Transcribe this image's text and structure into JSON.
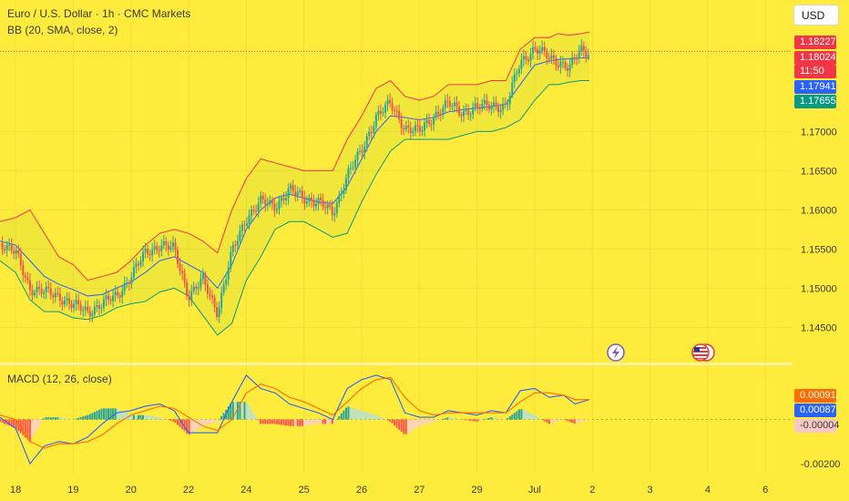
{
  "header": {
    "symbol_title": "Euro / U.S. Dollar · 1h · CMC Markets",
    "bb_indicator": "BB (20, SMA, close, 2)",
    "macd_indicator": "MACD (12, 26, close)",
    "currency_button": "USD"
  },
  "price_tags": {
    "upper_band": {
      "value": "1.18227",
      "color": "#f23645"
    },
    "last_price": {
      "value": "1.18024",
      "color": "#f23645"
    },
    "countdown": {
      "value": "11:50",
      "color": "#f23645"
    },
    "basis": {
      "value": "1.17941",
      "color": "#2962ff"
    },
    "lower_band": {
      "value": "1.17655",
      "color": "#089981"
    }
  },
  "macd_tags": {
    "signal": {
      "value": "0.00091",
      "color": "#ff6d00"
    },
    "macd": {
      "value": "0.00087",
      "color": "#2962ff"
    },
    "histogram": {
      "value": "-0.00004",
      "color": "#f7c6c6"
    }
  },
  "events": {
    "flash_icon": "lightning-icon",
    "us_flag_icon": "us-flag-icon"
  },
  "chart_data": [
    {
      "type": "line",
      "name_hint": "price",
      "y_ticks": [
        "1.17000",
        "1.16500",
        "1.16000",
        "1.15500",
        "1.15000",
        "1.14500"
      ],
      "y_tick_values": [
        1.17,
        1.165,
        1.16,
        1.155,
        1.15,
        1.145
      ],
      "ylim": [
        1.1405,
        1.1868
      ],
      "x_ticks": [
        "18",
        "19",
        "20",
        "22",
        "24",
        "25",
        "26",
        "27",
        "29",
        "Jul",
        "2",
        "3",
        "4",
        "6"
      ],
      "x_day_index": [
        0,
        1,
        2,
        3,
        4,
        5,
        6,
        7,
        8,
        9,
        10,
        11,
        12,
        13
      ],
      "xlim": [
        -0.27,
        13.47
      ],
      "series": [
        {
          "key": "close",
          "color": "#26a69a",
          "x": [
            -0.27,
            0,
            0.25,
            0.5,
            0.75,
            1,
            1.25,
            1.5,
            1.75,
            2,
            2.25,
            2.5,
            2.75,
            3,
            3.25,
            3.5,
            3.75,
            4,
            4.25,
            4.5,
            4.75,
            5,
            5.25,
            5.5,
            5.75,
            6,
            6.25,
            6.5,
            6.75,
            7,
            7.25,
            7.5,
            7.75,
            8,
            8.25,
            8.5,
            8.75,
            9,
            9.25,
            9.4,
            9.6,
            9.8,
            9.95
          ],
          "values": [
            1.1558,
            1.1545,
            1.15,
            1.1495,
            1.149,
            1.1478,
            1.147,
            1.148,
            1.149,
            1.1515,
            1.1545,
            1.1555,
            1.155,
            1.149,
            1.151,
            1.147,
            1.1545,
            1.159,
            1.161,
            1.1605,
            1.1625,
            1.1615,
            1.161,
            1.1595,
            1.1645,
            1.1675,
            1.172,
            1.1735,
            1.1705,
            1.17,
            1.172,
            1.1735,
            1.1725,
            1.173,
            1.1735,
            1.173,
            1.179,
            1.1805,
            1.1795,
            1.179,
            1.178,
            1.1805,
            1.1802
          ]
        },
        {
          "key": "bb_upper",
          "color": "#f23645",
          "x": [
            -0.27,
            0,
            0.25,
            0.5,
            0.75,
            1,
            1.25,
            1.5,
            1.75,
            2,
            2.25,
            2.5,
            2.75,
            3,
            3.25,
            3.5,
            3.75,
            4,
            4.25,
            4.5,
            4.75,
            5,
            5.25,
            5.5,
            5.75,
            6,
            6.25,
            6.5,
            6.75,
            7,
            7.25,
            7.5,
            7.75,
            8,
            8.25,
            8.5,
            8.75,
            9,
            9.25,
            9.4,
            9.6,
            9.8,
            9.95
          ],
          "values": [
            1.1585,
            1.159,
            1.16,
            1.157,
            1.154,
            1.153,
            1.151,
            1.1515,
            1.152,
            1.1535,
            1.1555,
            1.157,
            1.1575,
            1.157,
            1.156,
            1.1545,
            1.16,
            1.164,
            1.1665,
            1.166,
            1.1655,
            1.165,
            1.165,
            1.165,
            1.169,
            1.172,
            1.1755,
            1.1765,
            1.1745,
            1.174,
            1.1745,
            1.176,
            1.176,
            1.176,
            1.1765,
            1.1765,
            1.1805,
            1.182,
            1.182,
            1.1825,
            1.1823,
            1.1825,
            1.1827
          ]
        },
        {
          "key": "bb_basis",
          "color": "#2962ff",
          "x": [
            -0.27,
            0,
            0.25,
            0.5,
            0.75,
            1,
            1.25,
            1.5,
            1.75,
            2,
            2.25,
            2.5,
            2.75,
            3,
            3.25,
            3.5,
            3.75,
            4,
            4.25,
            4.5,
            4.75,
            5,
            5.25,
            5.5,
            5.75,
            6,
            6.25,
            6.5,
            6.75,
            7,
            7.25,
            7.5,
            7.75,
            8,
            8.25,
            8.5,
            8.75,
            9,
            9.25,
            9.4,
            9.6,
            9.8,
            9.95
          ],
          "values": [
            1.156,
            1.1555,
            1.1535,
            1.1515,
            1.1505,
            1.1498,
            1.149,
            1.1492,
            1.15,
            1.1508,
            1.152,
            1.1535,
            1.154,
            1.153,
            1.152,
            1.15,
            1.153,
            1.1575,
            1.16,
            1.1615,
            1.162,
            1.1615,
            1.161,
            1.1608,
            1.163,
            1.1665,
            1.17,
            1.172,
            1.1718,
            1.1715,
            1.1718,
            1.1725,
            1.1728,
            1.173,
            1.1732,
            1.1735,
            1.176,
            1.1785,
            1.179,
            1.1792,
            1.1793,
            1.1794,
            1.1794
          ]
        },
        {
          "key": "bb_lower",
          "color": "#089981",
          "x": [
            -0.27,
            0,
            0.25,
            0.5,
            0.75,
            1,
            1.25,
            1.5,
            1.75,
            2,
            2.25,
            2.5,
            2.75,
            3,
            3.25,
            3.5,
            3.75,
            4,
            4.25,
            4.5,
            4.75,
            5,
            5.25,
            5.5,
            5.75,
            6,
            6.25,
            6.5,
            6.75,
            7,
            7.25,
            7.5,
            7.75,
            8,
            8.25,
            8.5,
            8.75,
            9,
            9.25,
            9.4,
            9.6,
            9.8,
            9.95
          ],
          "values": [
            1.1535,
            1.152,
            1.1485,
            1.147,
            1.147,
            1.1462,
            1.146,
            1.1465,
            1.1475,
            1.148,
            1.1483,
            1.1495,
            1.15,
            1.149,
            1.1465,
            1.144,
            1.1455,
            1.151,
            1.154,
            1.1575,
            1.1585,
            1.1585,
            1.1575,
            1.1565,
            1.157,
            1.161,
            1.1645,
            1.1675,
            1.169,
            1.169,
            1.169,
            1.169,
            1.1695,
            1.17,
            1.17,
            1.1705,
            1.1715,
            1.174,
            1.176,
            1.176,
            1.1763,
            1.1765,
            1.1765
          ]
        }
      ]
    },
    {
      "type": "line",
      "name_hint": "macd",
      "y_ticks": [
        "-0.00200"
      ],
      "y_tick_values": [
        -0.002
      ],
      "ylim": [
        -0.00245,
        0.00245
      ],
      "x_ticks_shared": true,
      "xlim": [
        -0.27,
        13.47
      ],
      "series": [
        {
          "key": "macd",
          "color": "#2962ff",
          "x": [
            -0.27,
            0,
            0.25,
            0.5,
            0.75,
            1,
            1.25,
            1.5,
            1.75,
            2,
            2.25,
            2.5,
            2.75,
            3,
            3.25,
            3.5,
            3.75,
            4,
            4.25,
            4.5,
            4.75,
            5,
            5.25,
            5.5,
            5.75,
            6,
            6.25,
            6.5,
            6.75,
            7,
            7.25,
            7.5,
            7.75,
            8,
            8.25,
            8.5,
            8.75,
            9,
            9.25,
            9.5,
            9.7,
            9.95
          ],
          "values": [
            0.0001,
            -0.0004,
            -0.002,
            -0.0012,
            -0.001,
            -0.0011,
            -0.0008,
            -0.0002,
            0.0003,
            0.0004,
            0.0006,
            0.0007,
            0.0004,
            -0.0006,
            -0.0006,
            -0.0006,
            0.0008,
            0.002,
            0.0014,
            0.0012,
            0.0007,
            0.0005,
            0.0003,
            0.0,
            0.0014,
            0.0018,
            0.002,
            0.0018,
            0.0003,
            0.0001,
            0.0001,
            0.0004,
            0.0003,
            0.0002,
            0.0004,
            0.0003,
            0.0013,
            0.0014,
            0.001,
            0.0011,
            0.0007,
            0.0009
          ]
        },
        {
          "key": "signal",
          "color": "#ff6d00",
          "x": [
            -0.27,
            0,
            0.25,
            0.5,
            0.75,
            1,
            1.25,
            1.5,
            1.75,
            2,
            2.25,
            2.5,
            2.75,
            3,
            3.25,
            3.5,
            3.75,
            4,
            4.25,
            4.5,
            4.75,
            5,
            5.25,
            5.5,
            5.75,
            6,
            6.25,
            6.5,
            6.75,
            7,
            7.25,
            7.5,
            7.75,
            8,
            8.25,
            8.5,
            8.75,
            9,
            9.25,
            9.5,
            9.7,
            9.95
          ],
          "values": [
            0.0002,
            0.0,
            -0.001,
            -0.0013,
            -0.0011,
            -0.0011,
            -0.001,
            -0.0007,
            -0.0002,
            0.0002,
            0.0004,
            0.0006,
            0.0005,
            0.0001,
            -0.0003,
            -0.0005,
            0.0,
            0.0012,
            0.0016,
            0.0014,
            0.001,
            0.0008,
            0.0005,
            0.0002,
            0.0008,
            0.0014,
            0.0018,
            0.0019,
            0.001,
            0.0004,
            0.0002,
            0.0003,
            0.0003,
            0.0003,
            0.0003,
            0.0003,
            0.0008,
            0.0012,
            0.0012,
            0.0011,
            0.0009,
            0.0009
          ]
        }
      ]
    }
  ]
}
